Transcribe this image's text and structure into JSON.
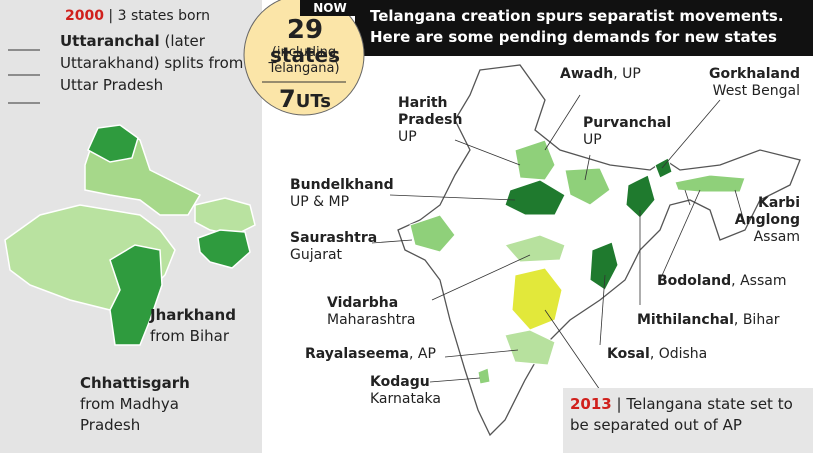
{
  "left_panel": {
    "year": "2000",
    "heading": "| 3 states born",
    "items": [
      {
        "name": "Uttaranchal",
        "detail": "(later Uttarakhand) splits from Uttar Pradesh"
      },
      {
        "name": "Jharkhand",
        "detail": "from Bihar"
      },
      {
        "name": "Chhattisgarh",
        "detail": "from Madhya Pradesh"
      }
    ]
  },
  "badge": {
    "tag": "NOW",
    "states_number": "29",
    "states_word": "states",
    "note": "(including Telangana)",
    "uts_number": "7",
    "uts_word": "UTs"
  },
  "header": {
    "line1": "Telangana creation spurs separatist movements.",
    "line2": "Here are some pending demands for new states"
  },
  "demands": [
    {
      "name": "Awadh",
      "region": ", UP"
    },
    {
      "name": "Gorkhaland",
      "region": "West Bengal"
    },
    {
      "name": "Harith Pradesh",
      "region": "UP"
    },
    {
      "name": "Purvanchal",
      "region": "UP"
    },
    {
      "name": "Bundelkhand",
      "region": "UP & MP"
    },
    {
      "name": "Karbi Anglong",
      "region": "Assam"
    },
    {
      "name": "Saurashtra",
      "region": "Gujarat"
    },
    {
      "name": "Bodoland",
      "region": ", Assam"
    },
    {
      "name": "Vidarbha",
      "region": "Maharashtra"
    },
    {
      "name": "Mithilanchal",
      "region": ", Bihar"
    },
    {
      "name": "Rayalaseema",
      "region": ", AP"
    },
    {
      "name": "Kosal",
      "region": ", Odisha"
    },
    {
      "name": "Kodagu",
      "region": "Karnataka"
    }
  ],
  "footer": {
    "year": "2013",
    "text": "| Telangana state set to be separated out of AP"
  }
}
